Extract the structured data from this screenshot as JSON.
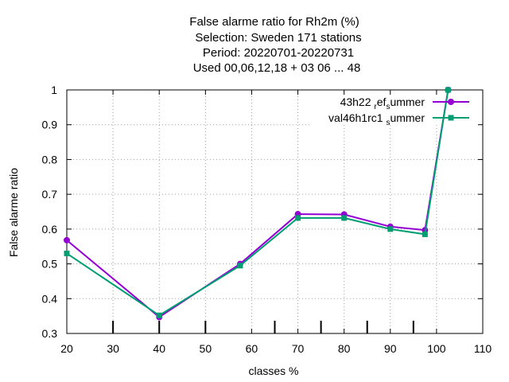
{
  "chart_data": {
    "type": "line",
    "title_lines": [
      "False alarme ratio  for Rh2m (%)",
      "Selection: Sweden    171 stations",
      "Period: 20220701-20220731",
      "Used  00,06,12,18  + 03 06 ... 48"
    ],
    "xlabel": "classes %",
    "ylabel": "False alarme ratio",
    "xlim": [
      20,
      110
    ],
    "ylim": [
      0.3,
      1.0
    ],
    "xticks": [
      20,
      30,
      40,
      50,
      60,
      70,
      80,
      90,
      100,
      110
    ],
    "yticks": [
      0.3,
      0.4,
      0.5,
      0.6,
      0.7,
      0.8,
      0.9,
      1.0
    ],
    "ytick_labels": [
      "0.3",
      "0.4",
      "0.5",
      "0.6",
      "0.7",
      "0.8",
      "0.9",
      "1"
    ],
    "grid": true,
    "legend_position": "top-right",
    "count_ticks_x": [
      30,
      40,
      50,
      65,
      75,
      85,
      95
    ],
    "series": [
      {
        "name": "43h22_ref_summer",
        "name_parts": [
          "43h22 ",
          "r",
          "ef",
          "s",
          "ummer"
        ],
        "color": "#9400d3",
        "marker": "circle",
        "x": [
          20,
          40,
          57.5,
          70,
          80,
          90,
          97.5,
          102.5
        ],
        "y": [
          0.568,
          0.347,
          0.5,
          0.643,
          0.642,
          0.607,
          0.597,
          1.0
        ]
      },
      {
        "name": "val46h1rc1_summer",
        "name_parts": [
          "val46h1rc1 ",
          "",
          "",
          "s",
          "ummer"
        ],
        "color": "#009e73",
        "marker": "square",
        "x": [
          20,
          40,
          57.5,
          70,
          80,
          90,
          97.5,
          102.5
        ],
        "y": [
          0.53,
          0.352,
          0.495,
          0.632,
          0.632,
          0.6,
          0.585,
          1.0
        ]
      }
    ]
  }
}
